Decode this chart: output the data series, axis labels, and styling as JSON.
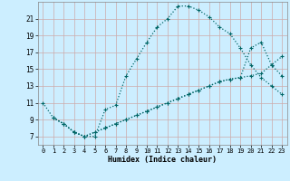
{
  "xlabel": "Humidex (Indice chaleur)",
  "bg_color": "#cceeff",
  "grid_color": "#aaddcc",
  "line_color": "#006666",
  "xlim": [
    -0.5,
    23.5
  ],
  "ylim": [
    6,
    23
  ],
  "xticks": [
    0,
    1,
    2,
    3,
    4,
    5,
    6,
    7,
    8,
    9,
    10,
    11,
    12,
    13,
    14,
    15,
    16,
    17,
    18,
    19,
    20,
    21,
    22,
    23
  ],
  "yticks": [
    7,
    9,
    11,
    13,
    15,
    17,
    19,
    21
  ],
  "line1_x": [
    0,
    1,
    2,
    3,
    4,
    5,
    6,
    7,
    8,
    9,
    10,
    11,
    12,
    13,
    14,
    15,
    16,
    17,
    18,
    19,
    20,
    21,
    22,
    23
  ],
  "line1_y": [
    11,
    9.2,
    8.5,
    7.5,
    7.0,
    7.0,
    10.2,
    10.7,
    14.2,
    16.2,
    18.2,
    20.0,
    21.0,
    22.5,
    22.5,
    22.0,
    21.2,
    20.0,
    19.2,
    17.5,
    15.5,
    14,
    13,
    12
  ],
  "line2_x": [
    1,
    2,
    3,
    4,
    5,
    6,
    7,
    8,
    9,
    10,
    11,
    12,
    13,
    14,
    15,
    16,
    17,
    18,
    19,
    20,
    21,
    22,
    23
  ],
  "line2_y": [
    9.2,
    8.5,
    7.5,
    7.0,
    7.5,
    8.0,
    8.5,
    9.0,
    9.5,
    10.0,
    10.5,
    11.0,
    11.5,
    12.0,
    12.5,
    13.0,
    13.5,
    13.8,
    14.0,
    14.2,
    14.5,
    15.5,
    14.2
  ],
  "line3_x": [
    1,
    2,
    3,
    4,
    5,
    6,
    7,
    8,
    9,
    10,
    11,
    12,
    13,
    14,
    15,
    16,
    17,
    18,
    19,
    20,
    21,
    22,
    23
  ],
  "line3_y": [
    9.2,
    8.5,
    7.5,
    7.0,
    7.5,
    8.0,
    8.5,
    9.0,
    9.5,
    10.0,
    10.5,
    11.0,
    11.5,
    12.0,
    12.5,
    13.0,
    13.5,
    13.8,
    14.0,
    17.5,
    18.2,
    15.5,
    16.5
  ]
}
